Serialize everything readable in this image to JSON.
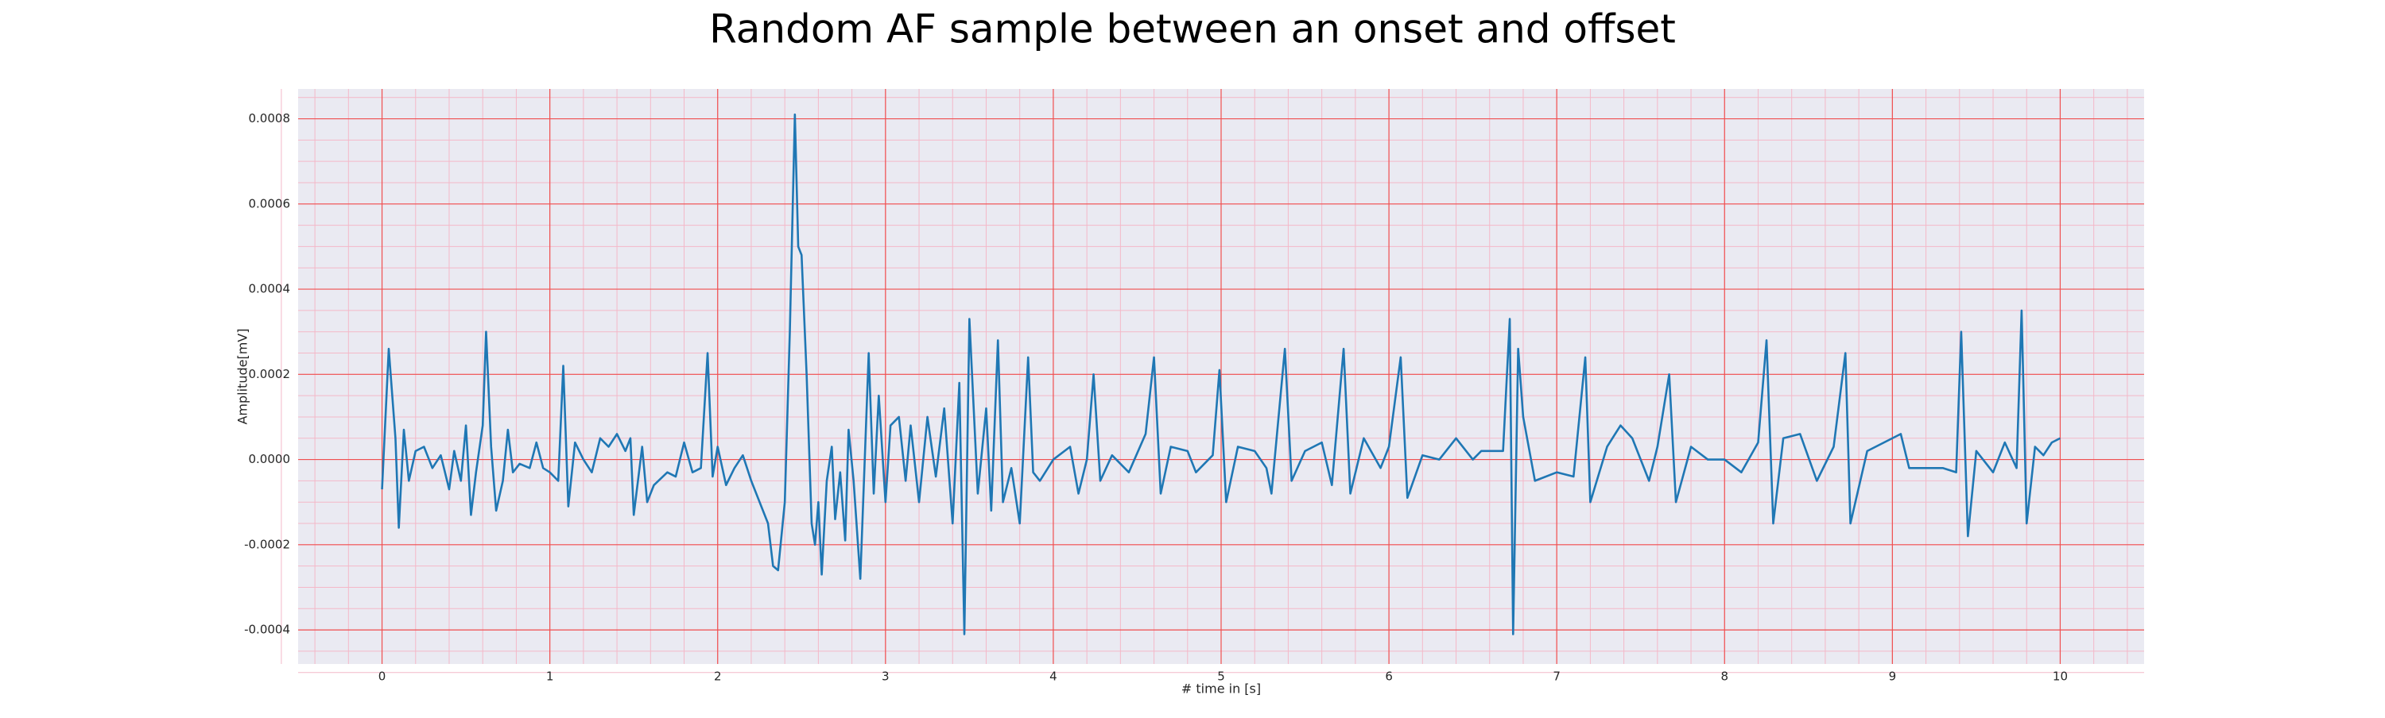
{
  "chart_data": {
    "type": "line",
    "title": "Random AF sample between an onset and offset",
    "xlabel": "# time in [s]",
    "ylabel": "Amplitude[mV]",
    "color": "#1f77b4",
    "grid": true,
    "minor_grid": true,
    "xlim": [
      -0.5,
      10.5
    ],
    "ylim": [
      -0.00048,
      0.00087
    ],
    "xticks": [
      0,
      1,
      2,
      3,
      4,
      5,
      6,
      7,
      8,
      9,
      10
    ],
    "yticks": [
      {
        "value": -0.0004,
        "label": "-0.0004"
      },
      {
        "value": -0.0002,
        "label": "-0.0002"
      },
      {
        "value": 0,
        "label": "0.0000"
      },
      {
        "value": 0.0002,
        "label": "0.0002"
      },
      {
        "value": 0.0004,
        "label": "0.0004"
      },
      {
        "value": 0.0006,
        "label": "0.0006"
      },
      {
        "value": 0.0008,
        "label": "0.0008"
      }
    ],
    "x": [
      0.0,
      0.04,
      0.08,
      0.1,
      0.13,
      0.16,
      0.2,
      0.25,
      0.3,
      0.35,
      0.4,
      0.43,
      0.47,
      0.5,
      0.53,
      0.56,
      0.6,
      0.62,
      0.65,
      0.68,
      0.72,
      0.75,
      0.78,
      0.82,
      0.88,
      0.92,
      0.96,
      1.0,
      1.05,
      1.08,
      1.11,
      1.15,
      1.2,
      1.25,
      1.3,
      1.35,
      1.4,
      1.45,
      1.48,
      1.5,
      1.55,
      1.58,
      1.62,
      1.7,
      1.75,
      1.8,
      1.85,
      1.9,
      1.94,
      1.97,
      2.0,
      2.05,
      2.1,
      2.15,
      2.2,
      2.25,
      2.3,
      2.33,
      2.36,
      2.4,
      2.43,
      2.46,
      2.48,
      2.5,
      2.53,
      2.56,
      2.58,
      2.6,
      2.62,
      2.65,
      2.68,
      2.7,
      2.73,
      2.76,
      2.78,
      2.81,
      2.85,
      2.9,
      2.93,
      2.96,
      3.0,
      3.03,
      3.08,
      3.12,
      3.15,
      3.2,
      3.25,
      3.3,
      3.35,
      3.4,
      3.44,
      3.47,
      3.5,
      3.55,
      3.6,
      3.63,
      3.67,
      3.7,
      3.75,
      3.8,
      3.85,
      3.88,
      3.92,
      4.0,
      4.1,
      4.15,
      4.2,
      4.24,
      4.28,
      4.35,
      4.45,
      4.55,
      4.6,
      4.64,
      4.7,
      4.8,
      4.85,
      4.95,
      4.99,
      5.03,
      5.1,
      5.2,
      5.27,
      5.3,
      5.38,
      5.42,
      5.5,
      5.6,
      5.66,
      5.73,
      5.77,
      5.85,
      5.95,
      6.0,
      6.07,
      6.11,
      6.2,
      6.3,
      6.4,
      6.5,
      6.55,
      6.68,
      6.72,
      6.74,
      6.77,
      6.8,
      6.87,
      7.0,
      7.1,
      7.17,
      7.2,
      7.3,
      7.38,
      7.45,
      7.55,
      7.6,
      7.67,
      7.71,
      7.8,
      7.9,
      8.0,
      8.1,
      8.2,
      8.25,
      8.29,
      8.35,
      8.45,
      8.55,
      8.65,
      8.72,
      8.75,
      8.85,
      8.95,
      9.05,
      9.1,
      9.2,
      9.3,
      9.38,
      9.41,
      9.45,
      9.5,
      9.6,
      9.67,
      9.74,
      9.77,
      9.8,
      9.85,
      9.9,
      9.95,
      10.0
    ],
    "values": [
      -7e-05,
      0.00026,
      5e-05,
      -0.00016,
      7e-05,
      -5e-05,
      2e-05,
      3e-05,
      -2e-05,
      1e-05,
      -7e-05,
      2e-05,
      -5e-05,
      8e-05,
      -0.00013,
      -3e-05,
      8e-05,
      0.0003,
      3e-05,
      -0.00012,
      -5e-05,
      7e-05,
      -3e-05,
      -1e-05,
      -2e-05,
      4e-05,
      -2e-05,
      -3e-05,
      -5e-05,
      0.00022,
      -0.00011,
      4e-05,
      0.0,
      -3e-05,
      5e-05,
      3e-05,
      6e-05,
      2e-05,
      5e-05,
      -0.00013,
      3e-05,
      -0.0001,
      -6e-05,
      -3e-05,
      -4e-05,
      4e-05,
      -3e-05,
      -2e-05,
      0.00025,
      -4e-05,
      3e-05,
      -6e-05,
      -2e-05,
      1e-05,
      -5e-05,
      -0.0001,
      -0.00015,
      -0.00025,
      -0.00026,
      -0.0001,
      0.0003,
      0.00081,
      0.0005,
      0.00048,
      0.0002,
      -0.00015,
      -0.0002,
      -0.0001,
      -0.00027,
      -5e-05,
      3e-05,
      -0.00014,
      -3e-05,
      -0.00019,
      7e-05,
      -5e-05,
      -0.00028,
      0.00025,
      -8e-05,
      0.00015,
      -0.0001,
      8e-05,
      0.0001,
      -5e-05,
      8e-05,
      -0.0001,
      0.0001,
      -4e-05,
      0.00012,
      -0.00015,
      0.00018,
      -0.00041,
      0.00033,
      -8e-05,
      0.00012,
      -0.00012,
      0.00028,
      -0.0001,
      -2e-05,
      -0.00015,
      0.00024,
      -3e-05,
      -5e-05,
      0.0,
      3e-05,
      -8e-05,
      0.0,
      0.0002,
      -5e-05,
      1e-05,
      -3e-05,
      6e-05,
      0.00024,
      -8e-05,
      3e-05,
      2e-05,
      -3e-05,
      1e-05,
      0.00021,
      -0.0001,
      3e-05,
      2e-05,
      -2e-05,
      -8e-05,
      0.00026,
      -5e-05,
      2e-05,
      4e-05,
      -6e-05,
      0.00026,
      -8e-05,
      5e-05,
      -2e-05,
      3e-05,
      0.00024,
      -9e-05,
      1e-05,
      0.0,
      5e-05,
      0.0,
      2e-05,
      2e-05,
      0.00033,
      -0.00041,
      0.00026,
      0.0001,
      -5e-05,
      -3e-05,
      -4e-05,
      0.00024,
      -0.0001,
      3e-05,
      8e-05,
      5e-05,
      -5e-05,
      3e-05,
      0.0002,
      -0.0001,
      3e-05,
      0.0,
      0.0,
      -3e-05,
      4e-05,
      0.00028,
      -0.00015,
      5e-05,
      6e-05,
      -5e-05,
      3e-05,
      0.00025,
      -0.00015,
      2e-05,
      4e-05,
      6e-05,
      -2e-05,
      -2e-05,
      -2e-05,
      -3e-05,
      0.0003,
      -0.00018,
      2e-05,
      -3e-05,
      4e-05,
      -2e-05,
      0.00035,
      -0.00015,
      3e-05,
      1e-05,
      4e-05,
      5e-05
    ]
  }
}
